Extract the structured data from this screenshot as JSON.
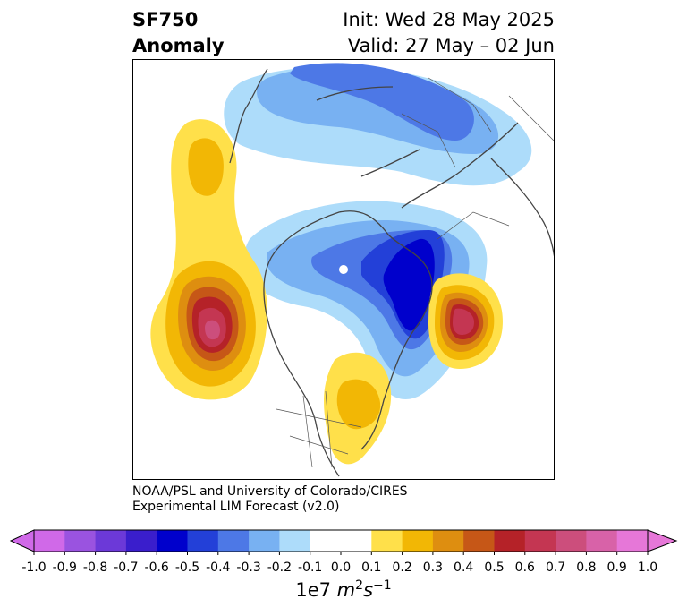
{
  "title": {
    "line1": "SF750",
    "line2": "Anomaly",
    "init": "Init: Wed 28 May 2025",
    "valid": "Valid: 27 May – 02 Jun"
  },
  "credits": {
    "line1": "NOAA/PSL and University of Colorado/CIRES",
    "line2": "Experimental LIM Forecast (v2.0)"
  },
  "colorbar": {
    "label_base": "1e7 ",
    "label_unit_m": "m",
    "label_exp1": "2",
    "label_unit_s": "s",
    "label_exp2": "−1",
    "ticks": [
      "-1.0",
      "-0.9",
      "-0.8",
      "-0.7",
      "-0.6",
      "-0.5",
      "-0.4",
      "-0.3",
      "-0.2",
      "-0.1",
      "0.0",
      "0.1",
      "0.2",
      "0.3",
      "0.4",
      "0.5",
      "0.6",
      "0.7",
      "0.8",
      "0.9",
      "1.0"
    ],
    "colors": [
      "#d069e8",
      "#9a53e0",
      "#6c39d8",
      "#3a1ecc",
      "#0000cc",
      "#2340d8",
      "#4d78e6",
      "#78b1f2",
      "#addcfa",
      "#ffffff",
      "#ffffff",
      "#ffe04a",
      "#f2b705",
      "#de8e10",
      "#c65717",
      "#b52228",
      "#c43652",
      "#cc4e7c",
      "#d862a8",
      "#e677d8"
    ],
    "extend_min_color": "#d069e8",
    "extend_max_color": "#e677d8"
  }
}
